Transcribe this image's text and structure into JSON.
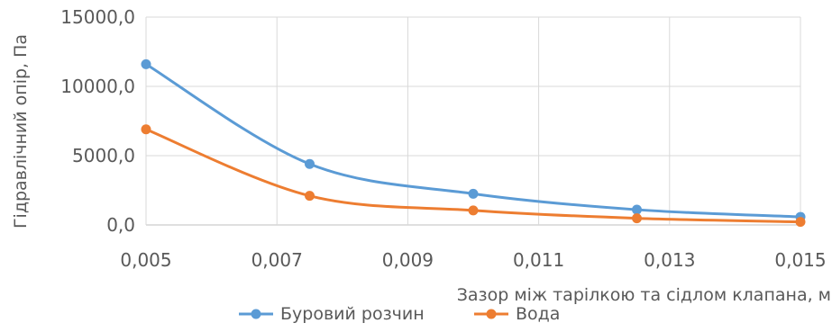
{
  "chart_data": {
    "type": "line",
    "title": "",
    "xlabel": "Зазор між тарілкою та сідлом клапана, м",
    "ylabel": "Гідравлічний опір, Па",
    "x": [
      0.005,
      0.0075,
      0.01,
      0.0125,
      0.015
    ],
    "xlim": [
      0.005,
      0.015
    ],
    "ylim": [
      0,
      15000
    ],
    "x_ticks": [
      "0,005",
      "0,007",
      "0,009",
      "0,011",
      "0,013",
      "0,015"
    ],
    "y_ticks": [
      "0,0",
      "5000,0",
      "10000,0",
      "15000,0"
    ],
    "grid": true,
    "legend_position": "bottom",
    "smooth": true,
    "series": [
      {
        "name": "Буровий розчин",
        "color": "#5b9bd5",
        "values": [
          11600,
          4400,
          2250,
          1100,
          580
        ]
      },
      {
        "name": "Вода",
        "color": "#ed7d31",
        "values": [
          6900,
          2100,
          1050,
          480,
          220
        ]
      }
    ]
  }
}
